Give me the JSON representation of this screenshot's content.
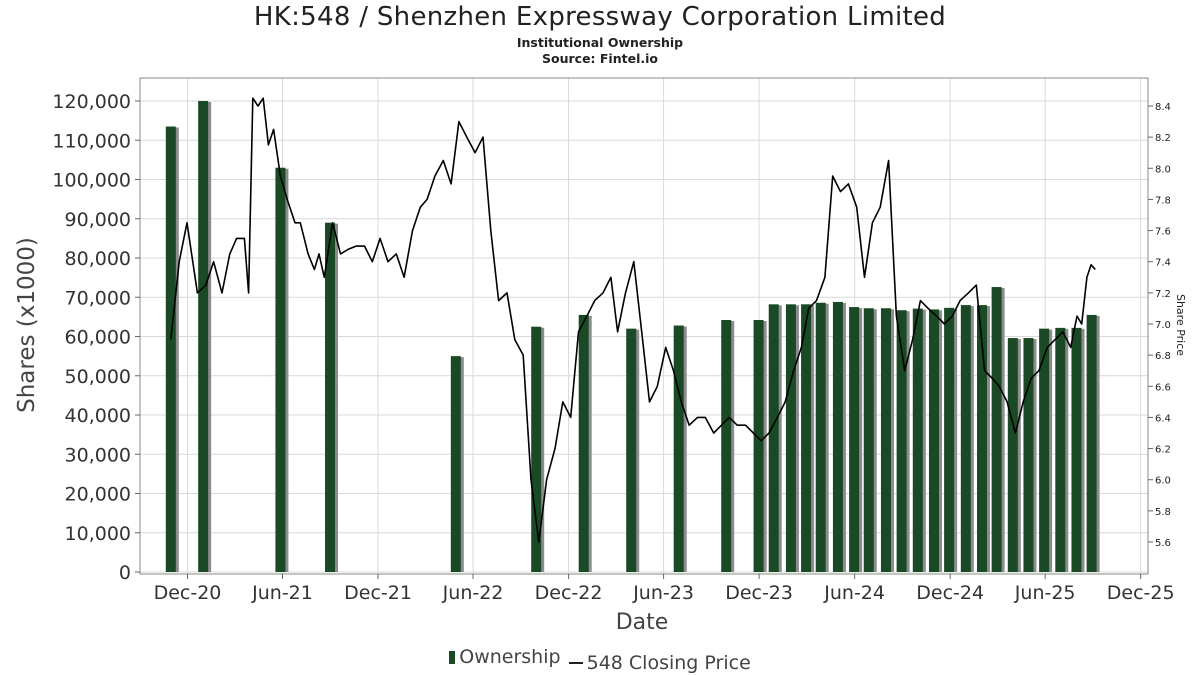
{
  "title": "HK:548 / Shenzhen Expressway Corporation Limited",
  "subtitle": "Institutional Ownership",
  "source": "Source: Fintel.io",
  "chart_data": {
    "type": "bar",
    "xlabel": "Date",
    "ylabel": "Shares (x1000)",
    "y2label": "Share Price",
    "ylim": [
      0,
      125000
    ],
    "y2lim": [
      5.45,
      8.55
    ],
    "xlim": [
      "2020-09-01",
      "2025-12-15"
    ],
    "yticks": [
      "0",
      "10,000",
      "20,000",
      "30,000",
      "40,000",
      "50,000",
      "60,000",
      "70,000",
      "80,000",
      "90,000",
      "100,000",
      "110,000",
      "120,000"
    ],
    "y2ticks": [
      "5.6",
      "5.8",
      "6.0",
      "6.2",
      "6.4",
      "6.6",
      "6.8",
      "7.0",
      "7.2",
      "7.4",
      "7.6",
      "7.8",
      "8.0",
      "8.2",
      "8.4"
    ],
    "xticks": [
      {
        "date": "2020-12-01",
        "label": "Dec-20"
      },
      {
        "date": "2021-06-01",
        "label": "Jun-21"
      },
      {
        "date": "2021-12-01",
        "label": "Dec-21"
      },
      {
        "date": "2022-06-01",
        "label": "Jun-22"
      },
      {
        "date": "2022-12-01",
        "label": "Dec-22"
      },
      {
        "date": "2023-06-01",
        "label": "Jun-23"
      },
      {
        "date": "2023-12-01",
        "label": "Dec-23"
      },
      {
        "date": "2024-06-01",
        "label": "Jun-24"
      },
      {
        "date": "2024-12-01",
        "label": "Dec-24"
      },
      {
        "date": "2025-06-01",
        "label": "Jun-25"
      },
      {
        "date": "2025-12-01",
        "label": "Dec-25"
      }
    ],
    "grid": true,
    "legend": "bottom",
    "series": [
      {
        "name": "Ownership",
        "type": "bar",
        "color": "#1a4a25",
        "points": [
          {
            "x": "2020-10-30",
            "y": 113500
          },
          {
            "x": "2020-12-31",
            "y": 120000
          },
          {
            "x": "2021-05-28",
            "y": 103000
          },
          {
            "x": "2021-08-31",
            "y": 89000
          },
          {
            "x": "2022-04-29",
            "y": 55000
          },
          {
            "x": "2022-09-30",
            "y": 62500
          },
          {
            "x": "2022-12-30",
            "y": 65500
          },
          {
            "x": "2023-03-31",
            "y": 62000
          },
          {
            "x": "2023-06-30",
            "y": 62800
          },
          {
            "x": "2023-09-29",
            "y": 64200
          },
          {
            "x": "2023-11-30",
            "y": 64200
          },
          {
            "x": "2023-12-29",
            "y": 68200
          },
          {
            "x": "2024-01-31",
            "y": 68200
          },
          {
            "x": "2024-02-29",
            "y": 68200
          },
          {
            "x": "2024-03-28",
            "y": 68600
          },
          {
            "x": "2024-04-30",
            "y": 68800
          },
          {
            "x": "2024-05-31",
            "y": 67500
          },
          {
            "x": "2024-06-28",
            "y": 67200
          },
          {
            "x": "2024-07-31",
            "y": 67200
          },
          {
            "x": "2024-08-30",
            "y": 66700
          },
          {
            "x": "2024-09-30",
            "y": 67100
          },
          {
            "x": "2024-10-31",
            "y": 66900
          },
          {
            "x": "2024-11-29",
            "y": 67300
          },
          {
            "x": "2024-12-31",
            "y": 68000
          },
          {
            "x": "2025-01-31",
            "y": 68000
          },
          {
            "x": "2025-02-28",
            "y": 72600
          },
          {
            "x": "2025-03-31",
            "y": 59600
          },
          {
            "x": "2025-04-30",
            "y": 59600
          },
          {
            "x": "2025-05-30",
            "y": 62000
          },
          {
            "x": "2025-06-30",
            "y": 62200
          },
          {
            "x": "2025-07-31",
            "y": 62200
          },
          {
            "x": "2025-08-29",
            "y": 65500
          }
        ]
      },
      {
        "name": "548 Closing Price",
        "type": "line",
        "axis": "right",
        "color": "#000000",
        "points": [
          {
            "x": "2020-10-30",
            "y": 6.9
          },
          {
            "x": "2020-11-15",
            "y": 7.4
          },
          {
            "x": "2020-11-30",
            "y": 7.65
          },
          {
            "x": "2020-12-20",
            "y": 7.2
          },
          {
            "x": "2021-01-05",
            "y": 7.25
          },
          {
            "x": "2021-01-20",
            "y": 7.4
          },
          {
            "x": "2021-02-05",
            "y": 7.2
          },
          {
            "x": "2021-02-20",
            "y": 7.45
          },
          {
            "x": "2021-03-05",
            "y": 7.55
          },
          {
            "x": "2021-03-20",
            "y": 7.55
          },
          {
            "x": "2021-03-28",
            "y": 7.2
          },
          {
            "x": "2021-04-05",
            "y": 8.45
          },
          {
            "x": "2021-04-15",
            "y": 8.4
          },
          {
            "x": "2021-04-25",
            "y": 8.45
          },
          {
            "x": "2021-05-05",
            "y": 8.15
          },
          {
            "x": "2021-05-15",
            "y": 8.25
          },
          {
            "x": "2021-05-28",
            "y": 7.95
          },
          {
            "x": "2021-06-10",
            "y": 7.8
          },
          {
            "x": "2021-06-25",
            "y": 7.65
          },
          {
            "x": "2021-07-05",
            "y": 7.65
          },
          {
            "x": "2021-07-20",
            "y": 7.45
          },
          {
            "x": "2021-08-01",
            "y": 7.35
          },
          {
            "x": "2021-08-10",
            "y": 7.45
          },
          {
            "x": "2021-08-20",
            "y": 7.3
          },
          {
            "x": "2021-09-05",
            "y": 7.65
          },
          {
            "x": "2021-09-20",
            "y": 7.45
          },
          {
            "x": "2021-10-05",
            "y": 7.48
          },
          {
            "x": "2021-10-20",
            "y": 7.5
          },
          {
            "x": "2021-11-05",
            "y": 7.5
          },
          {
            "x": "2021-11-20",
            "y": 7.4
          },
          {
            "x": "2021-12-05",
            "y": 7.55
          },
          {
            "x": "2021-12-20",
            "y": 7.4
          },
          {
            "x": "2022-01-05",
            "y": 7.45
          },
          {
            "x": "2022-01-20",
            "y": 7.3
          },
          {
            "x": "2022-02-05",
            "y": 7.6
          },
          {
            "x": "2022-02-20",
            "y": 7.75
          },
          {
            "x": "2022-03-05",
            "y": 7.8
          },
          {
            "x": "2022-03-20",
            "y": 7.95
          },
          {
            "x": "2022-04-05",
            "y": 8.05
          },
          {
            "x": "2022-04-20",
            "y": 7.9
          },
          {
            "x": "2022-05-05",
            "y": 8.3
          },
          {
            "x": "2022-05-20",
            "y": 8.2
          },
          {
            "x": "2022-06-05",
            "y": 8.1
          },
          {
            "x": "2022-06-20",
            "y": 8.2
          },
          {
            "x": "2022-07-05",
            "y": 7.6
          },
          {
            "x": "2022-07-20",
            "y": 7.15
          },
          {
            "x": "2022-08-05",
            "y": 7.2
          },
          {
            "x": "2022-08-20",
            "y": 6.9
          },
          {
            "x": "2022-09-05",
            "y": 6.8
          },
          {
            "x": "2022-09-20",
            "y": 6.0
          },
          {
            "x": "2022-10-05",
            "y": 5.6
          },
          {
            "x": "2022-10-20",
            "y": 6.0
          },
          {
            "x": "2022-11-05",
            "y": 6.2
          },
          {
            "x": "2022-11-20",
            "y": 6.5
          },
          {
            "x": "2022-12-05",
            "y": 6.4
          },
          {
            "x": "2022-12-20",
            "y": 6.95
          },
          {
            "x": "2023-01-05",
            "y": 7.05
          },
          {
            "x": "2023-01-20",
            "y": 7.15
          },
          {
            "x": "2023-02-05",
            "y": 7.2
          },
          {
            "x": "2023-02-20",
            "y": 7.3
          },
          {
            "x": "2023-03-05",
            "y": 6.95
          },
          {
            "x": "2023-03-20",
            "y": 7.2
          },
          {
            "x": "2023-04-05",
            "y": 7.4
          },
          {
            "x": "2023-04-20",
            "y": 6.95
          },
          {
            "x": "2023-05-05",
            "y": 6.5
          },
          {
            "x": "2023-05-20",
            "y": 6.6
          },
          {
            "x": "2023-06-05",
            "y": 6.85
          },
          {
            "x": "2023-06-20",
            "y": 6.7
          },
          {
            "x": "2023-07-05",
            "y": 6.5
          },
          {
            "x": "2023-07-20",
            "y": 6.35
          },
          {
            "x": "2023-08-05",
            "y": 6.4
          },
          {
            "x": "2023-08-20",
            "y": 6.4
          },
          {
            "x": "2023-09-05",
            "y": 6.3
          },
          {
            "x": "2023-09-20",
            "y": 6.35
          },
          {
            "x": "2023-10-05",
            "y": 6.4
          },
          {
            "x": "2023-10-20",
            "y": 6.35
          },
          {
            "x": "2023-11-05",
            "y": 6.35
          },
          {
            "x": "2023-11-20",
            "y": 6.3
          },
          {
            "x": "2023-12-05",
            "y": 6.25
          },
          {
            "x": "2023-12-20",
            "y": 6.3
          },
          {
            "x": "2024-01-05",
            "y": 6.4
          },
          {
            "x": "2024-01-20",
            "y": 6.5
          },
          {
            "x": "2024-02-05",
            "y": 6.7
          },
          {
            "x": "2024-02-20",
            "y": 6.85
          },
          {
            "x": "2024-03-05",
            "y": 7.1
          },
          {
            "x": "2024-03-20",
            "y": 7.15
          },
          {
            "x": "2024-04-05",
            "y": 7.3
          },
          {
            "x": "2024-04-20",
            "y": 7.95
          },
          {
            "x": "2024-05-05",
            "y": 7.85
          },
          {
            "x": "2024-05-20",
            "y": 7.9
          },
          {
            "x": "2024-06-05",
            "y": 7.75
          },
          {
            "x": "2024-06-20",
            "y": 7.3
          },
          {
            "x": "2024-07-05",
            "y": 7.65
          },
          {
            "x": "2024-07-20",
            "y": 7.75
          },
          {
            "x": "2024-08-05",
            "y": 8.05
          },
          {
            "x": "2024-08-20",
            "y": 7.05
          },
          {
            "x": "2024-09-05",
            "y": 6.7
          },
          {
            "x": "2024-09-20",
            "y": 6.9
          },
          {
            "x": "2024-10-05",
            "y": 7.15
          },
          {
            "x": "2024-10-20",
            "y": 7.1
          },
          {
            "x": "2024-11-05",
            "y": 7.05
          },
          {
            "x": "2024-11-20",
            "y": 7.0
          },
          {
            "x": "2024-12-05",
            "y": 7.05
          },
          {
            "x": "2024-12-20",
            "y": 7.15
          },
          {
            "x": "2025-01-05",
            "y": 7.2
          },
          {
            "x": "2025-01-20",
            "y": 7.25
          },
          {
            "x": "2025-02-05",
            "y": 6.7
          },
          {
            "x": "2025-02-20",
            "y": 6.65
          },
          {
            "x": "2025-03-05",
            "y": 6.6
          },
          {
            "x": "2025-03-20",
            "y": 6.5
          },
          {
            "x": "2025-04-05",
            "y": 6.3
          },
          {
            "x": "2025-04-20",
            "y": 6.5
          },
          {
            "x": "2025-05-05",
            "y": 6.65
          },
          {
            "x": "2025-05-20",
            "y": 6.7
          },
          {
            "x": "2025-06-05",
            "y": 6.85
          },
          {
            "x": "2025-06-20",
            "y": 6.9
          },
          {
            "x": "2025-07-05",
            "y": 6.95
          },
          {
            "x": "2025-07-20",
            "y": 6.85
          },
          {
            "x": "2025-08-01",
            "y": 7.05
          },
          {
            "x": "2025-08-10",
            "y": 7.0
          },
          {
            "x": "2025-08-20",
            "y": 7.3
          },
          {
            "x": "2025-08-28",
            "y": 7.38
          },
          {
            "x": "2025-09-05",
            "y": 7.35
          }
        ]
      }
    ]
  },
  "colors": {
    "bar": "#1a4a25",
    "bar_shadow": "#8c8c8c",
    "price_line": "#000000",
    "grid": "#d9d9d9",
    "plot_border": "#888888"
  }
}
